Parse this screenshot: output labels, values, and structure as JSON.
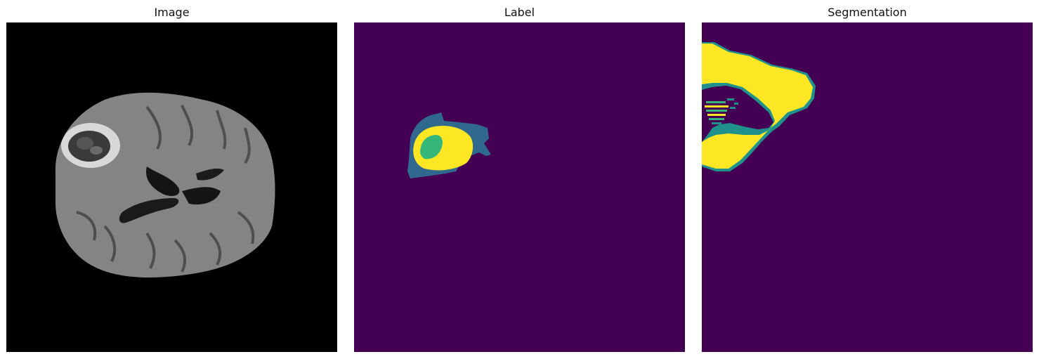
{
  "panels": [
    {
      "title": "Image"
    },
    {
      "title": "Label"
    },
    {
      "title": "Segmentation"
    }
  ],
  "colors": {
    "background": "#440154",
    "class_1": "#31688e",
    "class_2": "#35b779",
    "class_3": "#fde725",
    "mri_background": "#000000"
  }
}
